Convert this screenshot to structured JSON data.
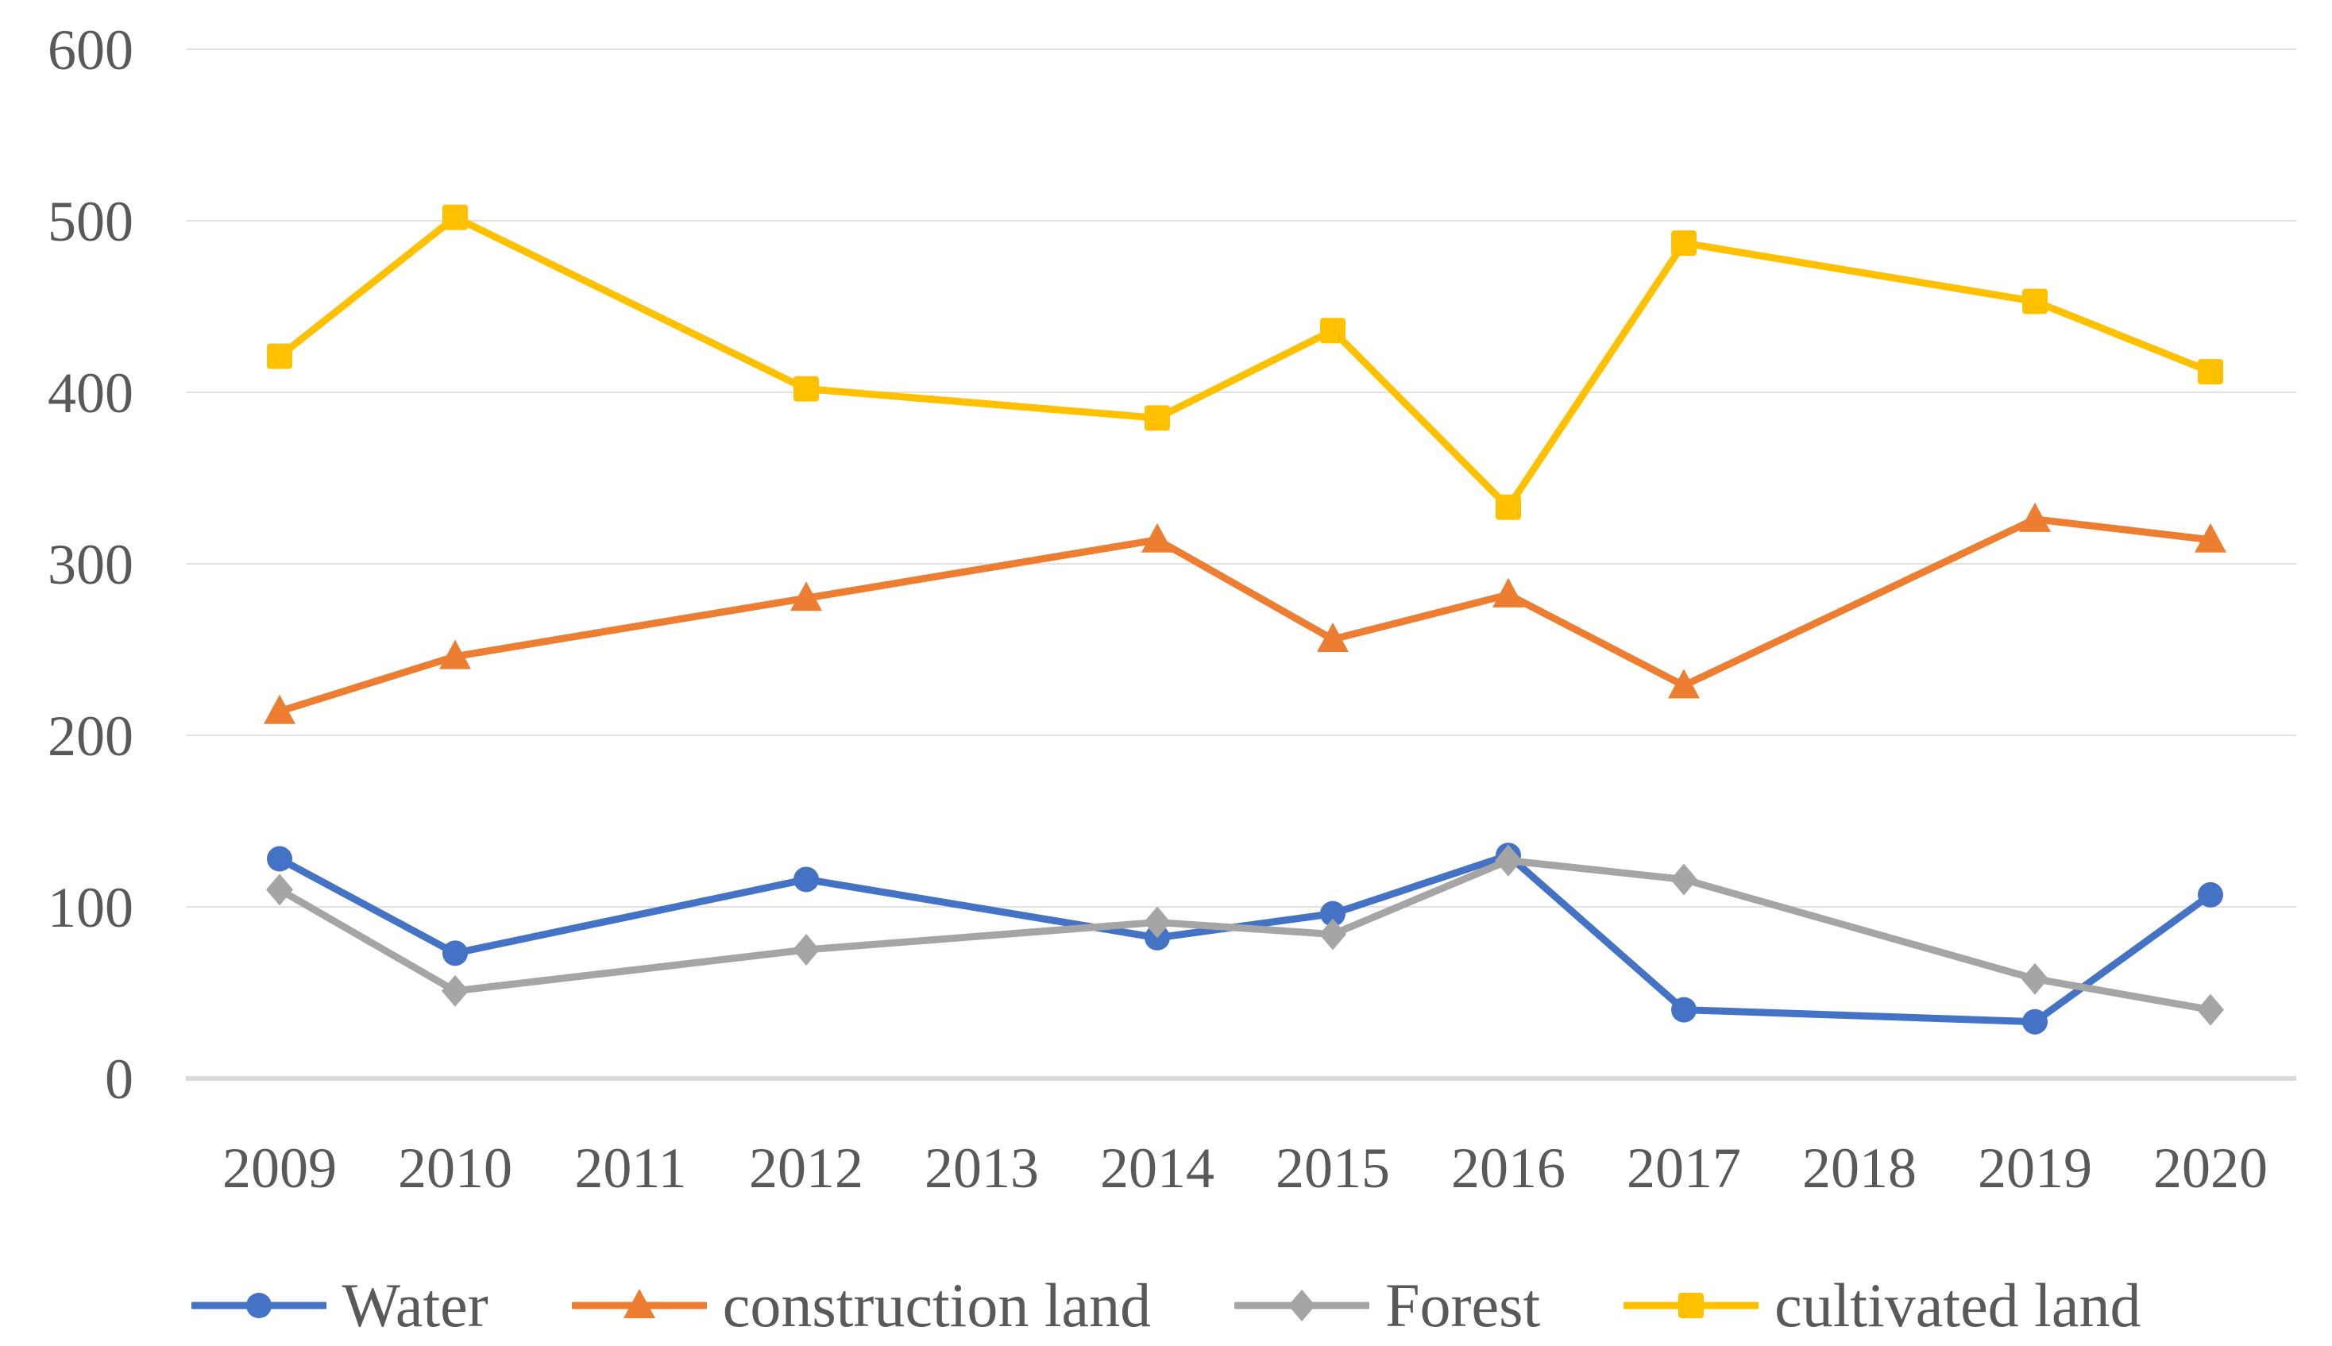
{
  "chart_data": {
    "type": "line",
    "title": "",
    "x_axis": {
      "categories": [
        "2009",
        "2010",
        "2011",
        "2012",
        "2013",
        "2014",
        "2015",
        "2016",
        "2017",
        "2018",
        "2019",
        "2020"
      ]
    },
    "y_axis": {
      "ticks": [
        0,
        100,
        200,
        300,
        400,
        500,
        600
      ],
      "range": [
        0,
        600
      ],
      "gridlines": true
    },
    "legend_position": "bottom",
    "data_years": [
      "2009",
      "2010",
      "2012",
      "2014",
      "2015",
      "2016",
      "2017",
      "2019",
      "2020"
    ],
    "series": [
      {
        "name": "Water",
        "marker": "circle",
        "color": "#4472C4",
        "values": [
          128,
          73,
          116,
          82,
          96,
          130,
          40,
          33,
          107
        ]
      },
      {
        "name": "construction land",
        "marker": "triangle",
        "color": "#ED7D31",
        "values": [
          214,
          246,
          280,
          314,
          256,
          282,
          229,
          326,
          314
        ]
      },
      {
        "name": "Forest",
        "marker": "diamond",
        "color": "#A5A5A5",
        "values": [
          110,
          51,
          75,
          91,
          84,
          127,
          116,
          58,
          40
        ]
      },
      {
        "name": "cultivated land",
        "marker": "square",
        "color": "#FFC000",
        "values": [
          421,
          502,
          402,
          385,
          436,
          333,
          487,
          453,
          412
        ]
      }
    ],
    "colors": {
      "gridline": "#E2E2E2",
      "axis_line": "#D9D9D9",
      "tick_label": "#595959",
      "background": "#FFFFFF"
    }
  }
}
